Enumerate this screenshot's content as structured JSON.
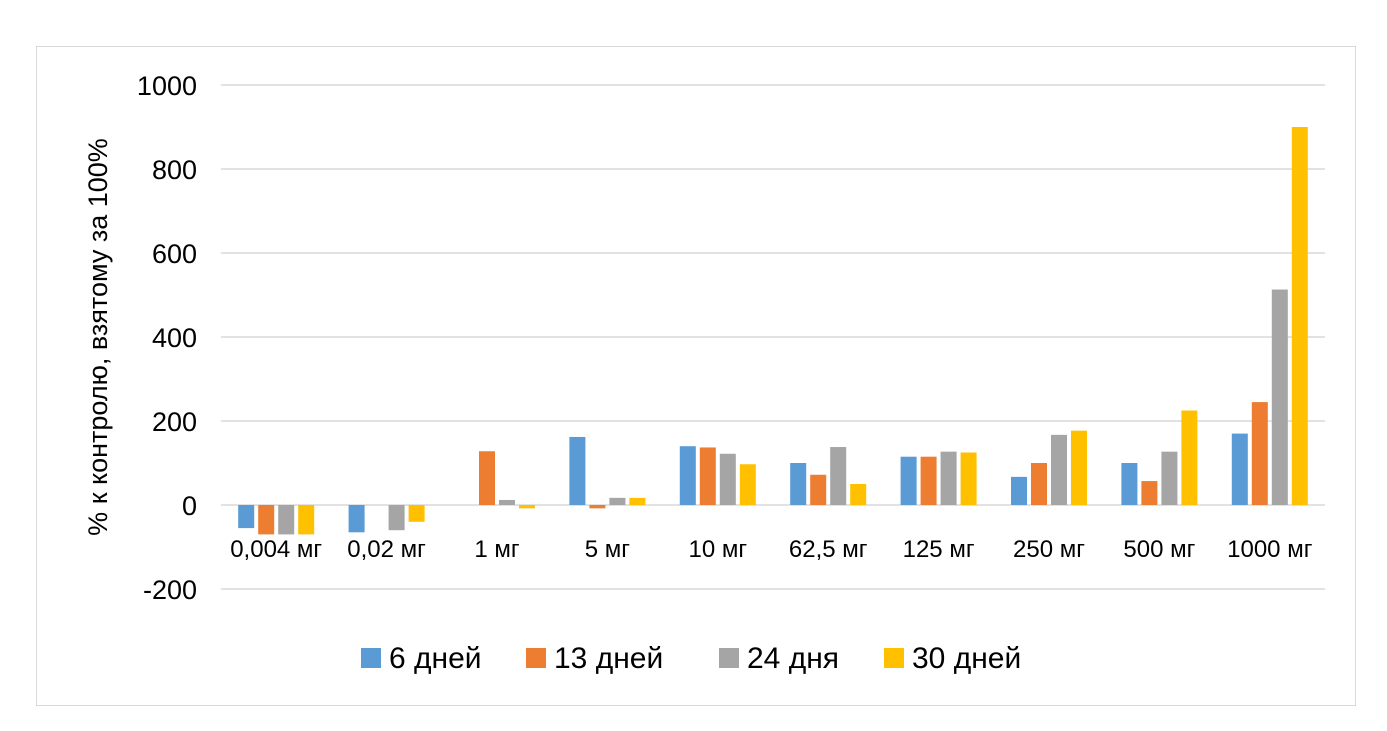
{
  "chart_data": {
    "type": "bar",
    "title": "",
    "xlabel": "",
    "ylabel": "% к  контролю, взятому за 100%",
    "ylim": [
      -200,
      1000
    ],
    "yticks": [
      -200,
      0,
      200,
      400,
      600,
      800,
      1000
    ],
    "grid": true,
    "legend_position": "bottom",
    "categories": [
      "0,004 мг",
      "0,02 мг",
      "1 мг",
      "5 мг",
      "10 мг",
      "62,5 мг",
      "125 мг",
      "250 мг",
      "500 мг",
      "1000 мг"
    ],
    "series": [
      {
        "name": "6 дней",
        "color": "#5b9bd5",
        "values": [
          -55,
          -65,
          0,
          162,
          140,
          100,
          115,
          67,
          100,
          170
        ]
      },
      {
        "name": "13 дней",
        "color": "#ed7d31",
        "values": [
          -70,
          0,
          128,
          -8,
          137,
          72,
          115,
          100,
          57,
          245
        ]
      },
      {
        "name": "24 дня",
        "color": "#a5a5a5",
        "values": [
          -70,
          -60,
          12,
          17,
          122,
          138,
          127,
          167,
          127,
          513
        ]
      },
      {
        "name": "30 дней",
        "color": "#ffc000",
        "values": [
          -70,
          -40,
          -8,
          17,
          97,
          50,
          125,
          177,
          225,
          900
        ]
      }
    ]
  }
}
